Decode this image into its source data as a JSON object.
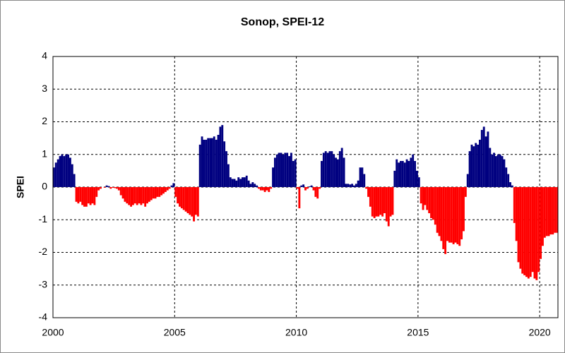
{
  "chart_data": {
    "type": "bar",
    "title": "Sonop, SPEI-12",
    "y_label": "SPEI",
    "positive_color": "#000080",
    "negative_color": "#ff0000",
    "grid": true,
    "xlim": [
      2000,
      2020.75
    ],
    "xticks": [
      2000,
      2005,
      2010,
      2015,
      2020
    ],
    "ylim": [
      -4,
      4
    ],
    "yticks": [
      -4,
      -3,
      -2,
      -1,
      0,
      1,
      2,
      3,
      4
    ],
    "x": [
      2000,
      2000.083,
      2000.167,
      2000.25,
      2000.333,
      2000.417,
      2000.5,
      2000.583,
      2000.667,
      2000.75,
      2000.833,
      2000.917,
      2001,
      2001.083,
      2001.167,
      2001.25,
      2001.333,
      2001.417,
      2001.5,
      2001.583,
      2001.667,
      2001.75,
      2001.833,
      2001.917,
      2002,
      2002.083,
      2002.167,
      2002.25,
      2002.333,
      2002.417,
      2002.5,
      2002.583,
      2002.667,
      2002.75,
      2002.833,
      2002.917,
      2003,
      2003.083,
      2003.167,
      2003.25,
      2003.333,
      2003.417,
      2003.5,
      2003.583,
      2003.667,
      2003.75,
      2003.833,
      2003.917,
      2004,
      2004.083,
      2004.167,
      2004.25,
      2004.333,
      2004.417,
      2004.5,
      2004.583,
      2004.667,
      2004.75,
      2004.833,
      2004.917,
      2005,
      2005.083,
      2005.167,
      2005.25,
      2005.333,
      2005.417,
      2005.5,
      2005.583,
      2005.667,
      2005.75,
      2005.833,
      2005.917,
      2006,
      2006.083,
      2006.167,
      2006.25,
      2006.333,
      2006.417,
      2006.5,
      2006.583,
      2006.667,
      2006.75,
      2006.833,
      2006.917,
      2007,
      2007.083,
      2007.167,
      2007.25,
      2007.333,
      2007.417,
      2007.5,
      2007.583,
      2007.667,
      2007.75,
      2007.833,
      2007.917,
      2008,
      2008.083,
      2008.167,
      2008.25,
      2008.333,
      2008.417,
      2008.5,
      2008.583,
      2008.667,
      2008.75,
      2008.833,
      2008.917,
      2009,
      2009.083,
      2009.167,
      2009.25,
      2009.333,
      2009.417,
      2009.5,
      2009.583,
      2009.667,
      2009.75,
      2009.833,
      2009.917,
      2010,
      2010.083,
      2010.167,
      2010.25,
      2010.333,
      2010.417,
      2010.5,
      2010.583,
      2010.667,
      2010.75,
      2010.833,
      2010.917,
      2011,
      2011.083,
      2011.167,
      2011.25,
      2011.333,
      2011.417,
      2011.5,
      2011.583,
      2011.667,
      2011.75,
      2011.833,
      2011.917,
      2012,
      2012.083,
      2012.167,
      2012.25,
      2012.333,
      2012.417,
      2012.5,
      2012.583,
      2012.667,
      2012.75,
      2012.833,
      2012.917,
      2013,
      2013.083,
      2013.167,
      2013.25,
      2013.333,
      2013.417,
      2013.5,
      2013.583,
      2013.667,
      2013.75,
      2013.833,
      2013.917,
      2014,
      2014.083,
      2014.167,
      2014.25,
      2014.333,
      2014.417,
      2014.5,
      2014.583,
      2014.667,
      2014.75,
      2014.833,
      2014.917,
      2015,
      2015.083,
      2015.167,
      2015.25,
      2015.333,
      2015.417,
      2015.5,
      2015.583,
      2015.667,
      2015.75,
      2015.833,
      2015.917,
      2016,
      2016.083,
      2016.167,
      2016.25,
      2016.333,
      2016.417,
      2016.5,
      2016.583,
      2016.667,
      2016.75,
      2016.833,
      2016.917,
      2017,
      2017.083,
      2017.167,
      2017.25,
      2017.333,
      2017.417,
      2017.5,
      2017.583,
      2017.667,
      2017.75,
      2017.833,
      2017.917,
      2018,
      2018.083,
      2018.167,
      2018.25,
      2018.333,
      2018.417,
      2018.5,
      2018.583,
      2018.667,
      2018.75,
      2018.833,
      2018.917,
      2019,
      2019.083,
      2019.167,
      2019.25,
      2019.333,
      2019.417,
      2019.5,
      2019.583,
      2019.667,
      2019.75,
      2019.833,
      2019.917,
      2020,
      2020.083,
      2020.167,
      2020.25,
      2020.333,
      2020.417,
      2020.5,
      2020.583,
      2020.667
    ],
    "values": [
      0.6,
      0.75,
      0.85,
      0.95,
      1.0,
      0.95,
      1.0,
      1.0,
      0.9,
      0.7,
      0.4,
      -0.45,
      -0.5,
      -0.45,
      -0.55,
      -0.6,
      -0.6,
      -0.5,
      -0.55,
      -0.5,
      -0.55,
      -0.3,
      -0.1,
      -0.05,
      0.0,
      -0.02,
      0.05,
      0.03,
      -0.05,
      -0.02,
      -0.03,
      -0.05,
      -0.1,
      -0.25,
      -0.35,
      -0.45,
      -0.5,
      -0.55,
      -0.6,
      -0.55,
      -0.5,
      -0.55,
      -0.5,
      -0.55,
      -0.5,
      -0.6,
      -0.5,
      -0.45,
      -0.4,
      -0.35,
      -0.35,
      -0.3,
      -0.3,
      -0.25,
      -0.2,
      -0.15,
      -0.1,
      -0.05,
      0.05,
      0.12,
      -0.3,
      -0.5,
      -0.6,
      -0.65,
      -0.7,
      -0.75,
      -0.8,
      -0.85,
      -0.9,
      -1.05,
      -0.85,
      -0.9,
      1.3,
      1.55,
      1.45,
      1.45,
      1.5,
      1.5,
      1.5,
      1.55,
      1.45,
      1.6,
      1.85,
      1.9,
      1.4,
      1.1,
      0.7,
      0.3,
      0.25,
      0.25,
      0.2,
      0.3,
      0.25,
      0.3,
      0.3,
      0.35,
      0.2,
      0.1,
      0.15,
      0.1,
      0.05,
      -0.05,
      -0.1,
      -0.1,
      -0.15,
      -0.1,
      -0.15,
      -0.05,
      0.6,
      0.9,
      1.0,
      1.05,
      1.05,
      1.0,
      1.05,
      1.05,
      0.95,
      1.05,
      0.8,
      0.85,
      -0.05,
      -0.65,
      0.05,
      0.08,
      -0.1,
      -0.05,
      0.02,
      0.05,
      -0.1,
      -0.3,
      -0.35,
      -0.05,
      0.8,
      1.05,
      1.1,
      1.05,
      1.1,
      1.1,
      1.0,
      0.9,
      0.85,
      1.1,
      1.2,
      0.9,
      0.1,
      0.1,
      0.08,
      0.1,
      0.05,
      0.1,
      0.2,
      0.6,
      0.6,
      0.4,
      -0.05,
      -0.3,
      -0.6,
      -0.9,
      -0.95,
      -0.9,
      -0.9,
      -0.85,
      -0.9,
      -0.8,
      -1.05,
      -1.2,
      -0.9,
      -0.85,
      0.5,
      0.85,
      0.75,
      0.8,
      0.8,
      0.75,
      0.85,
      0.8,
      0.9,
      1.0,
      0.8,
      0.5,
      0.3,
      -0.5,
      -0.7,
      -0.55,
      -0.7,
      -0.8,
      -0.95,
      -1.0,
      -1.15,
      -1.4,
      -1.5,
      -1.65,
      -1.9,
      -2.05,
      -1.65,
      -1.7,
      -1.7,
      -1.75,
      -1.7,
      -1.75,
      -1.8,
      -1.6,
      -1.35,
      -0.3,
      0.4,
      1.1,
      1.3,
      1.25,
      1.35,
      1.3,
      1.45,
      1.75,
      1.85,
      1.55,
      1.7,
      1.2,
      1.0,
      1.05,
      0.95,
      1.0,
      1.0,
      0.95,
      0.85,
      0.6,
      0.4,
      0.15,
      0.05,
      -1.1,
      -1.65,
      -2.3,
      -2.5,
      -2.65,
      -2.7,
      -2.75,
      -2.8,
      -2.75,
      -2.6,
      -2.8,
      -2.85,
      -2.6,
      -2.2,
      -1.8,
      -1.55,
      -1.5,
      -1.5,
      -1.45,
      -1.45,
      -1.4,
      -1.4
    ]
  }
}
